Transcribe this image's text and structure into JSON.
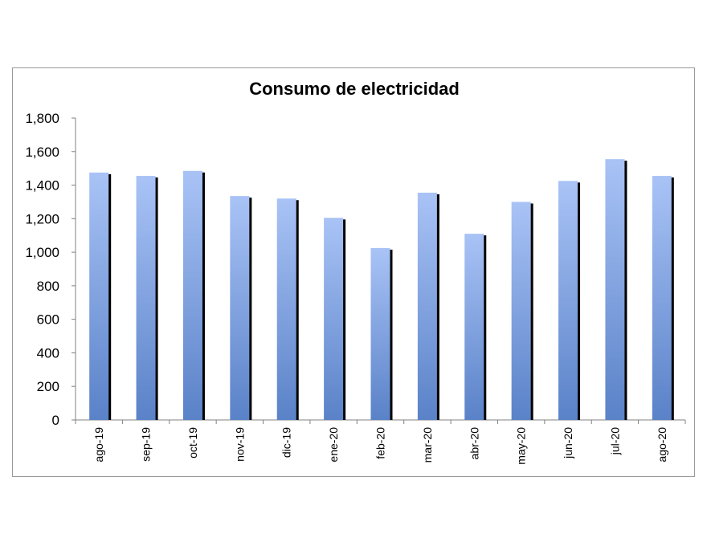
{
  "chart_data": {
    "type": "bar",
    "title": "Consumo de electricidad",
    "xlabel": "",
    "ylabel": "",
    "ylim": [
      0,
      1800
    ],
    "yticks": [
      "0",
      "200",
      "400",
      "600",
      "800",
      "1,000",
      "1,200",
      "1,400",
      "1,600",
      "1,800"
    ],
    "ytick_values": [
      0,
      200,
      400,
      600,
      800,
      1000,
      1200,
      1400,
      1600,
      1800
    ],
    "categories": [
      "ago-19",
      "sep-19",
      "oct-19",
      "nov-19",
      "dic-19",
      "ene-20",
      "feb-20",
      "mar-20",
      "abr-20",
      "may-20",
      "jun-20",
      "jul-20",
      "ago-20"
    ],
    "values": [
      1475,
      1455,
      1485,
      1335,
      1320,
      1205,
      1025,
      1355,
      1110,
      1300,
      1425,
      1555,
      1455
    ],
    "grid": false,
    "legend": "none",
    "colors": {
      "bar_top": "#a9c3f6",
      "bar_bottom": "#5a82c8",
      "bar_shadow": "#000000",
      "axis": "#808080"
    }
  }
}
